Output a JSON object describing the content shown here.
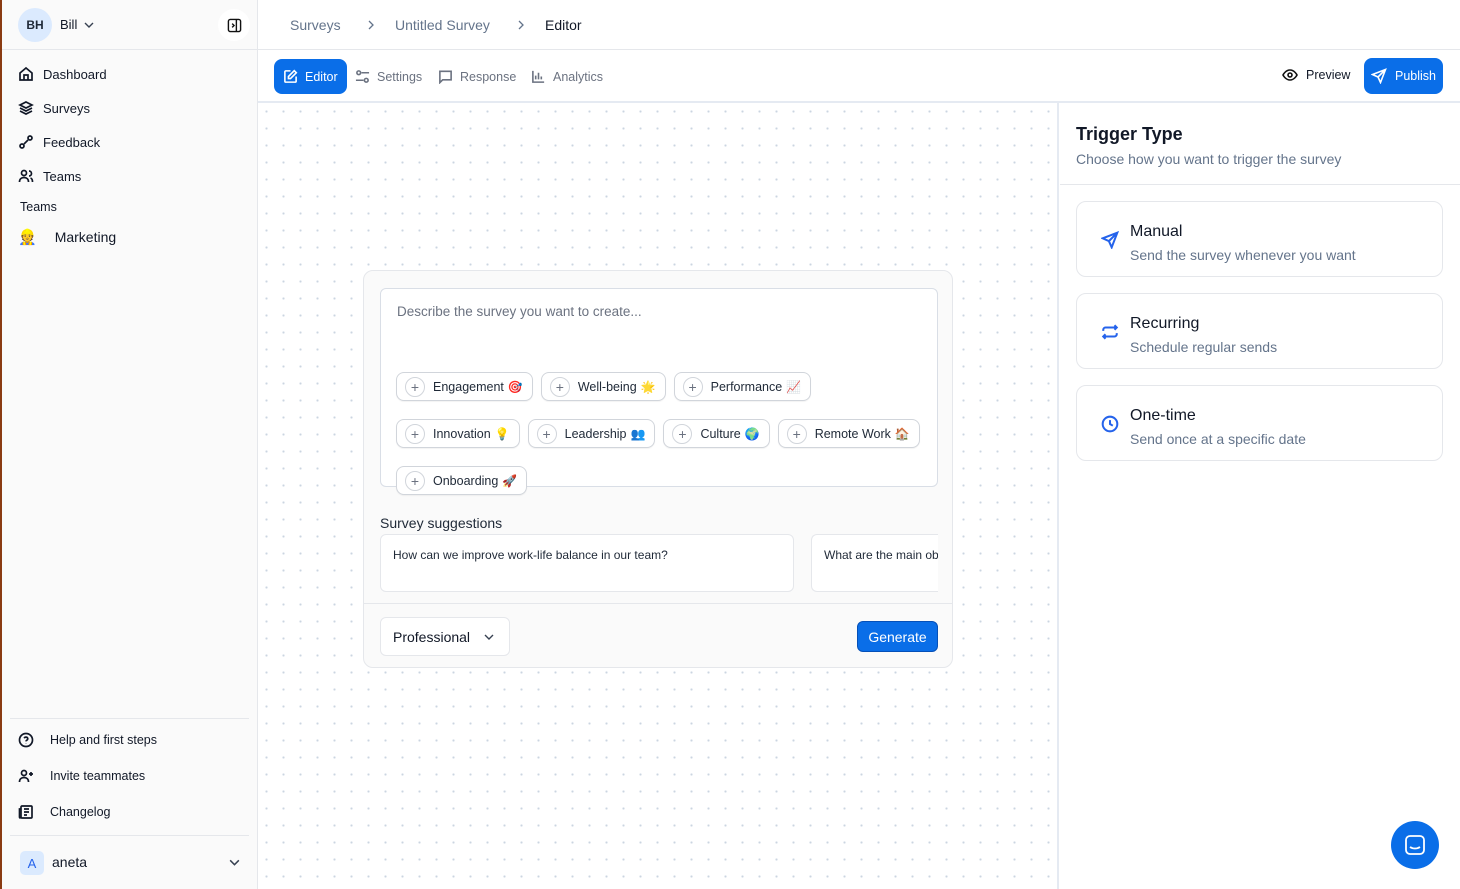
{
  "user": {
    "initials": "BH",
    "name": "Bill"
  },
  "sidebar": {
    "items": [
      {
        "label": "Dashboard",
        "icon": "home-icon"
      },
      {
        "label": "Surveys",
        "icon": "layers-icon"
      },
      {
        "label": "Feedback",
        "icon": "feedback-icon"
      },
      {
        "label": "Teams",
        "icon": "users-icon"
      }
    ],
    "teams_heading": "Teams",
    "teams": [
      {
        "label": "Marketing",
        "emoji": "👷"
      }
    ],
    "footer_items": [
      {
        "label": "Help and first steps",
        "icon": "help-circle-icon"
      },
      {
        "label": "Invite teammates",
        "icon": "user-plus-icon"
      },
      {
        "label": "Changelog",
        "icon": "changelog-icon"
      }
    ],
    "workspace": {
      "initial": "A",
      "name": "aneta"
    }
  },
  "breadcrumb": [
    "Surveys",
    "Untitled Survey",
    "Editor"
  ],
  "tabs": [
    {
      "label": "Editor",
      "active": true
    },
    {
      "label": "Settings"
    },
    {
      "label": "Response"
    },
    {
      "label": "Analytics"
    }
  ],
  "actions": {
    "preview": "Preview",
    "publish": "Publish"
  },
  "generator": {
    "placeholder": "Describe the survey you want to create...",
    "chips": [
      {
        "label": "Engagement",
        "emoji": "🎯"
      },
      {
        "label": "Well-being",
        "emoji": "🌟"
      },
      {
        "label": "Performance",
        "emoji": "📈"
      },
      {
        "label": "Innovation",
        "emoji": "💡"
      },
      {
        "label": "Leadership",
        "emoji": "👥"
      },
      {
        "label": "Culture",
        "emoji": "🌍"
      },
      {
        "label": "Remote Work",
        "emoji": "🏠"
      },
      {
        "label": "Onboarding",
        "emoji": "🚀"
      }
    ],
    "suggestions_heading": "Survey suggestions",
    "suggestions": [
      "How can we improve work-life balance in our team?",
      "What are the main ob"
    ],
    "tone": "Professional",
    "generate": "Generate"
  },
  "trigger": {
    "title": "Trigger Type",
    "subtitle": "Choose how you want to trigger the survey",
    "options": [
      {
        "title": "Manual",
        "desc": "Send the survey whenever you want",
        "icon": "send-icon"
      },
      {
        "title": "Recurring",
        "desc": "Schedule regular sends",
        "icon": "repeat-icon"
      },
      {
        "title": "One-time",
        "desc": "Send once at a specific date",
        "icon": "clock-icon"
      }
    ]
  },
  "colors": {
    "accent": "#0a6ee8",
    "icon_blue": "#2563eb"
  }
}
